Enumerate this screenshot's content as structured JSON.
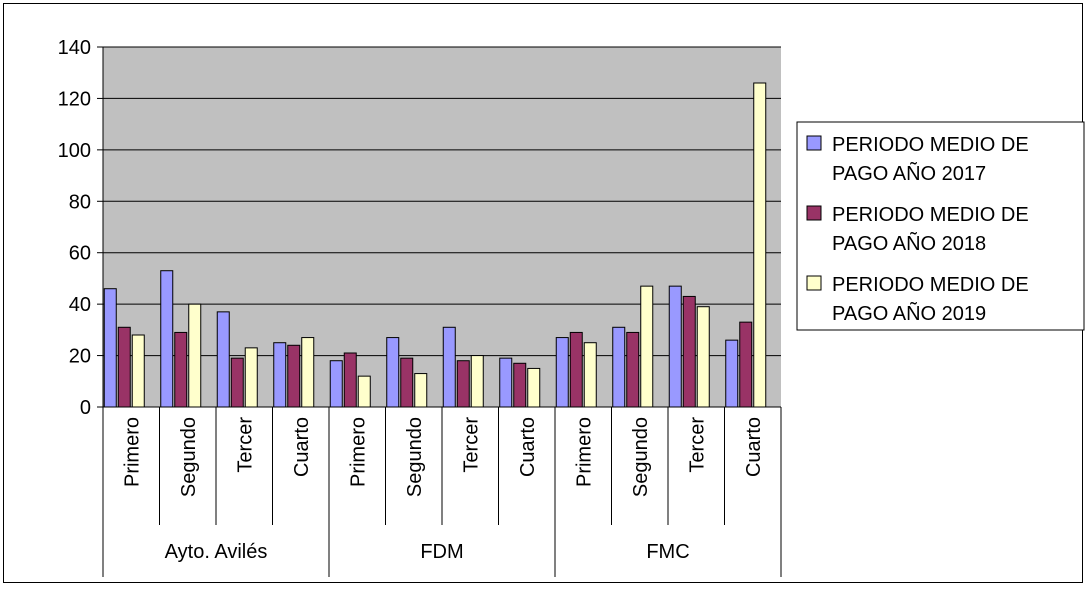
{
  "chart_data": {
    "type": "bar",
    "groups": [
      {
        "label": "Ayto. Avilés",
        "categories": [
          "Primero",
          "Segundo",
          "Tercer",
          "Cuarto"
        ]
      },
      {
        "label": "FDM",
        "categories": [
          "Primero",
          "Segundo",
          "Tercer",
          "Cuarto"
        ]
      },
      {
        "label": "FMC",
        "categories": [
          "Primero",
          "Segundo",
          "Tercer",
          "Cuarto"
        ]
      }
    ],
    "series": [
      {
        "name": [
          "PERIODO MEDIO DE",
          "PAGO AÑO 2017"
        ],
        "color": "#9999FF",
        "values": [
          46,
          53,
          37,
          25,
          18,
          27,
          31,
          19,
          27,
          31,
          47,
          26
        ]
      },
      {
        "name": [
          "PERIODO MEDIO DE",
          "PAGO AÑO 2018"
        ],
        "color": "#993366",
        "values": [
          31,
          29,
          19,
          24,
          21,
          19,
          18,
          17,
          29,
          29,
          43,
          33
        ]
      },
      {
        "name": [
          "PERIODO MEDIO DE",
          "PAGO AÑO 2019"
        ],
        "color": "#FFFFCC",
        "values": [
          28,
          40,
          23,
          27,
          12,
          13,
          20,
          15,
          25,
          47,
          39,
          126
        ]
      }
    ],
    "ylim": [
      0,
      140
    ],
    "yticks": [
      0,
      20,
      40,
      60,
      80,
      100,
      120,
      140
    ],
    "grid": true,
    "plot_background": "#C0C0C0",
    "legend_position": "right"
  }
}
